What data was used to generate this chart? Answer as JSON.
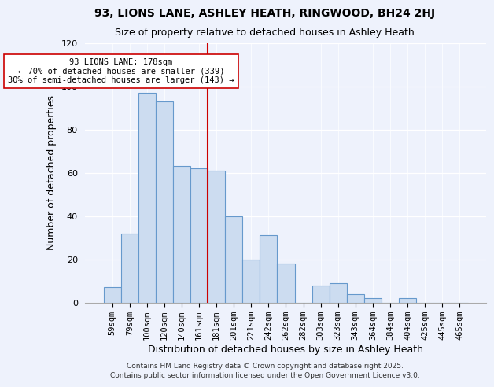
{
  "title": "93, LIONS LANE, ASHLEY HEATH, RINGWOOD, BH24 2HJ",
  "subtitle": "Size of property relative to detached houses in Ashley Heath",
  "xlabel": "Distribution of detached houses by size in Ashley Heath",
  "ylabel": "Number of detached properties",
  "bar_color": "#ccdcf0",
  "bar_edge_color": "#6699cc",
  "background_color": "#eef2fc",
  "categories": [
    "59sqm",
    "79sqm",
    "100sqm",
    "120sqm",
    "140sqm",
    "161sqm",
    "181sqm",
    "201sqm",
    "221sqm",
    "242sqm",
    "262sqm",
    "282sqm",
    "303sqm",
    "323sqm",
    "343sqm",
    "364sqm",
    "384sqm",
    "404sqm",
    "425sqm",
    "445sqm",
    "465sqm"
  ],
  "values": [
    7,
    32,
    97,
    93,
    63,
    62,
    61,
    40,
    20,
    31,
    18,
    0,
    8,
    9,
    4,
    2,
    0,
    2,
    0,
    0,
    0
  ],
  "vline_index": 6,
  "vline_color": "#cc0000",
  "annotation_line1": "93 LIONS LANE: 178sqm",
  "annotation_line2": "← 70% of detached houses are smaller (339)",
  "annotation_line3": "30% of semi-detached houses are larger (143) →",
  "annotation_box_color": "#ffffff",
  "annotation_box_edge": "#cc0000",
  "ylim": [
    0,
    120
  ],
  "yticks": [
    0,
    20,
    40,
    60,
    80,
    100,
    120
  ],
  "footer1": "Contains HM Land Registry data © Crown copyright and database right 2025.",
  "footer2": "Contains public sector information licensed under the Open Government Licence v3.0."
}
